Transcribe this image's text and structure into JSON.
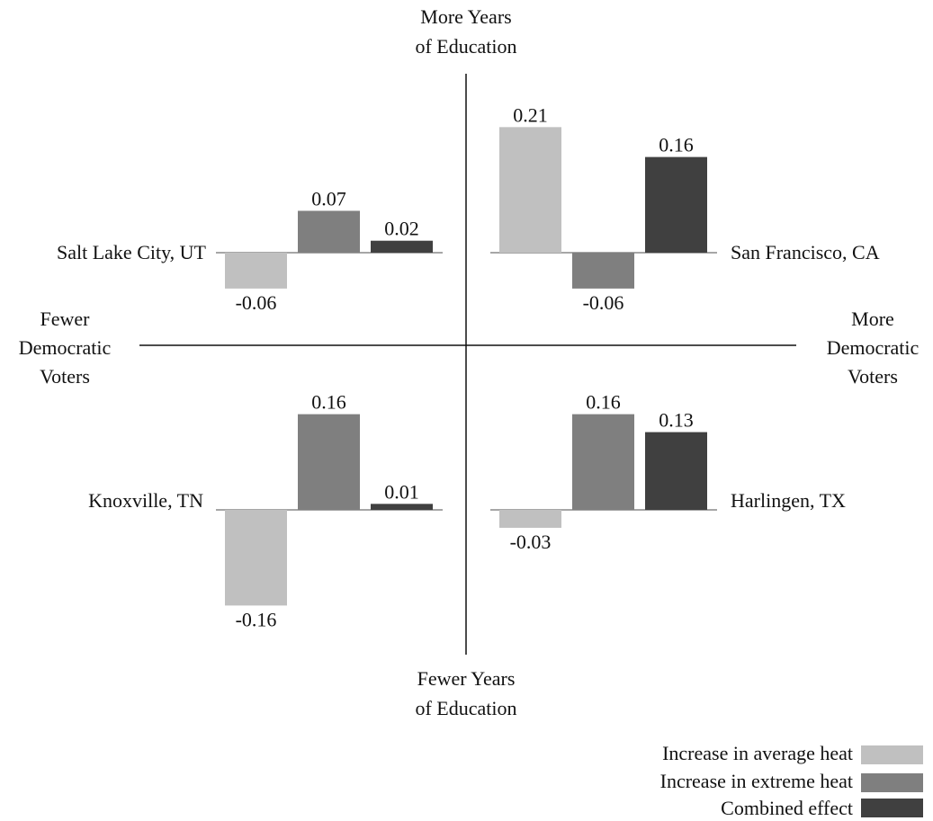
{
  "axes": {
    "top": [
      "More Years",
      "of Education"
    ],
    "bottom": [
      "Fewer Years",
      "of Education"
    ],
    "left": [
      "Fewer",
      "Democratic",
      "Voters"
    ],
    "right": [
      "More",
      "Democratic",
      "Voters"
    ]
  },
  "legend": [
    {
      "label": "Increase in average heat",
      "color": "#c0c0c0"
    },
    {
      "label": "Increase in extreme heat",
      "color": "#7f7f7f"
    },
    {
      "label": "Combined effect",
      "color": "#404040"
    }
  ],
  "chart_data": {
    "type": "bar",
    "series_names": [
      "Increase in average heat",
      "Increase in extreme heat",
      "Combined effect"
    ],
    "colors": [
      "#c0c0c0",
      "#7f7f7f",
      "#404040"
    ],
    "panels": [
      {
        "quadrant": "top-left",
        "city": "Salt Lake City, UT",
        "values": [
          -0.06,
          0.07,
          0.02
        ],
        "labels": [
          "-0.06",
          "0.07",
          "0.02"
        ]
      },
      {
        "quadrant": "top-right",
        "city": "San Francisco, CA",
        "values": [
          0.21,
          -0.06,
          0.16
        ],
        "labels": [
          "0.21",
          "-0.06",
          "0.16"
        ]
      },
      {
        "quadrant": "bottom-left",
        "city": "Knoxville, TN",
        "values": [
          -0.16,
          0.16,
          0.01
        ],
        "labels": [
          "-0.16",
          "0.16",
          "0.01"
        ]
      },
      {
        "quadrant": "bottom-right",
        "city": "Harlingen, TX",
        "values": [
          -0.03,
          0.16,
          0.13
        ],
        "labels": [
          "-0.03",
          "0.16",
          "0.13"
        ]
      }
    ]
  }
}
